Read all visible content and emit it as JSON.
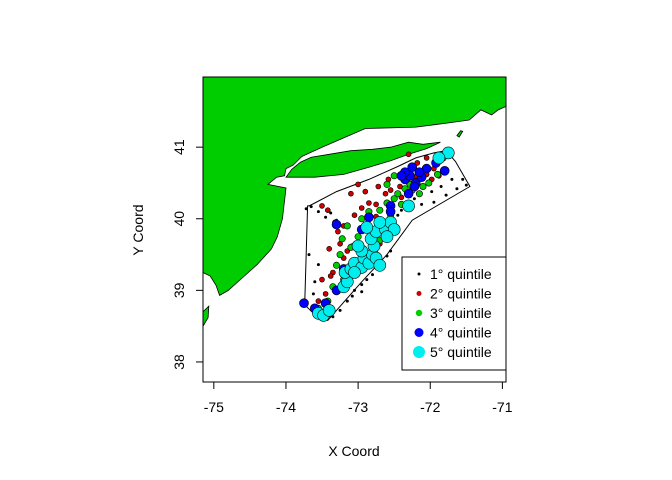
{
  "chart_data": {
    "type": "scatter",
    "xlabel": "X Coord",
    "ylabel": "Y Coord",
    "xlim": [
      -75.15,
      -70.95
    ],
    "ylim": [
      37.72,
      41.98
    ],
    "x_ticks": [
      "-75",
      "-74",
      "-73",
      "-72",
      "-71"
    ],
    "y_ticks": [
      "38",
      "39",
      "40",
      "41"
    ],
    "land_color": "#00CD00",
    "sea_color": "#FFFFFF",
    "survey_boundary": [
      [
        -73.68,
        40.18
      ],
      [
        -73.6,
        40.22
      ],
      [
        -73.3,
        40.38
      ],
      [
        -72.85,
        40.55
      ],
      [
        -72.45,
        40.73
      ],
      [
        -72.2,
        40.85
      ],
      [
        -71.95,
        40.92
      ],
      [
        -71.78,
        40.95
      ],
      [
        -71.65,
        40.8
      ],
      [
        -71.45,
        40.45
      ],
      [
        -72.25,
        39.98
      ],
      [
        -72.6,
        39.5
      ],
      [
        -72.95,
        39.12
      ],
      [
        -73.3,
        38.72
      ],
      [
        -73.42,
        38.58
      ],
      [
        -73.6,
        38.66
      ],
      [
        -73.74,
        38.8
      ],
      [
        -73.7,
        40.18
      ]
    ],
    "land_polygons": [
      {
        "name": "mainland",
        "points": [
          [
            -75.15,
            41.98
          ],
          [
            -70.95,
            41.98
          ],
          [
            -70.95,
            41.57
          ],
          [
            -71.06,
            41.52
          ],
          [
            -71.15,
            41.45
          ],
          [
            -71.3,
            41.52
          ],
          [
            -71.46,
            41.38
          ],
          [
            -71.67,
            41.35
          ],
          [
            -71.9,
            41.32
          ],
          [
            -72.2,
            41.28
          ],
          [
            -72.55,
            41.27
          ],
          [
            -72.9,
            41.26
          ],
          [
            -73.2,
            41.13
          ],
          [
            -73.5,
            41.0
          ],
          [
            -73.78,
            40.87
          ],
          [
            -73.9,
            40.75
          ],
          [
            -74.0,
            40.7
          ],
          [
            -74.02,
            40.6
          ],
          [
            -74.13,
            40.58
          ],
          [
            -74.25,
            40.48
          ],
          [
            -74.0,
            40.43
          ],
          [
            -74.02,
            40.25
          ],
          [
            -74.05,
            40.0
          ],
          [
            -74.12,
            39.75
          ],
          [
            -74.2,
            39.58
          ],
          [
            -74.4,
            39.36
          ],
          [
            -74.6,
            39.18
          ],
          [
            -74.8,
            39.0
          ],
          [
            -74.92,
            38.93
          ],
          [
            -74.97,
            39.07
          ],
          [
            -75.05,
            39.2
          ],
          [
            -75.15,
            39.25
          ]
        ]
      },
      {
        "name": "long-island",
        "points": [
          [
            -74.0,
            40.58
          ],
          [
            -73.6,
            40.58
          ],
          [
            -73.2,
            40.62
          ],
          [
            -72.85,
            40.72
          ],
          [
            -72.55,
            40.81
          ],
          [
            -72.3,
            40.9
          ],
          [
            -72.05,
            40.98
          ],
          [
            -71.86,
            41.07
          ],
          [
            -72.1,
            41.04
          ],
          [
            -72.3,
            41.07
          ],
          [
            -72.55,
            41.0
          ],
          [
            -72.8,
            40.97
          ],
          [
            -73.1,
            40.95
          ],
          [
            -73.4,
            40.9
          ],
          [
            -73.65,
            40.86
          ],
          [
            -73.8,
            40.79
          ],
          [
            -73.92,
            40.69
          ]
        ]
      },
      {
        "name": "block-island",
        "points": [
          [
            -71.6,
            41.14
          ],
          [
            -71.55,
            41.22
          ],
          [
            -71.58,
            41.23
          ],
          [
            -71.63,
            41.16
          ]
        ]
      },
      {
        "name": "delmarva",
        "points": [
          [
            -75.15,
            38.7
          ],
          [
            -75.07,
            38.78
          ],
          [
            -75.08,
            38.62
          ],
          [
            -75.15,
            38.5
          ]
        ]
      }
    ],
    "series": [
      {
        "name": "1° quintile",
        "color": "#000000",
        "size": 1.5,
        "outline": "#000000",
        "points": [
          [
            -73.72,
            40.14
          ],
          [
            -73.65,
            40.17
          ],
          [
            -73.55,
            40.1
          ],
          [
            -73.45,
            40.02
          ],
          [
            -73.38,
            40.08
          ],
          [
            -73.3,
            39.98
          ],
          [
            -72.45,
            40.05
          ],
          [
            -72.4,
            40.12
          ],
          [
            -72.3,
            40.18
          ],
          [
            -72.12,
            40.2
          ],
          [
            -71.95,
            40.23
          ],
          [
            -71.78,
            40.33
          ],
          [
            -71.63,
            40.42
          ],
          [
            -71.5,
            40.47
          ],
          [
            -71.55,
            40.55
          ],
          [
            -71.7,
            40.55
          ],
          [
            -71.85,
            40.65
          ],
          [
            -71.98,
            40.38
          ],
          [
            -71.85,
            40.45
          ],
          [
            -72.22,
            40.28
          ],
          [
            -73.25,
            38.72
          ],
          [
            -73.35,
            38.63
          ],
          [
            -73.42,
            38.62
          ],
          [
            -73.5,
            38.6
          ],
          [
            -73.58,
            38.65
          ],
          [
            -73.05,
            39.0
          ],
          [
            -72.95,
            39.08
          ],
          [
            -72.88,
            39.15
          ],
          [
            -72.8,
            39.22
          ],
          [
            -73.68,
            39.5
          ],
          [
            -73.55,
            39.36
          ],
          [
            -73.6,
            39.12
          ],
          [
            -73.08,
            38.92
          ],
          [
            -73.15,
            38.85
          ],
          [
            -72.95,
            38.98
          ],
          [
            -73.62,
            38.95
          ],
          [
            -72.6,
            39.48
          ],
          [
            -72.55,
            39.55
          ]
        ]
      },
      {
        "name": "2° quintile",
        "color": "#CD0000",
        "size": 2.5,
        "outline": "#000000",
        "points": [
          [
            -73.5,
            40.18
          ],
          [
            -73.42,
            40.12
          ],
          [
            -73.32,
            39.95
          ],
          [
            -73.2,
            39.9
          ],
          [
            -73.05,
            40.05
          ],
          [
            -72.95,
            40.15
          ],
          [
            -72.85,
            40.22
          ],
          [
            -72.75,
            40.2
          ],
          [
            -72.62,
            40.35
          ],
          [
            -72.55,
            40.4
          ],
          [
            -72.42,
            40.45
          ],
          [
            -72.3,
            40.5
          ],
          [
            -72.2,
            40.58
          ],
          [
            -72.05,
            40.62
          ],
          [
            -71.98,
            40.55
          ],
          [
            -71.88,
            40.6
          ],
          [
            -71.92,
            40.82
          ],
          [
            -72.05,
            40.85
          ],
          [
            -72.3,
            40.9
          ],
          [
            -72.18,
            40.78
          ],
          [
            -71.95,
            40.7
          ],
          [
            -72.4,
            40.3
          ],
          [
            -72.72,
            40.45
          ],
          [
            -72.9,
            40.38
          ],
          [
            -73.1,
            40.35
          ],
          [
            -73.0,
            40.48
          ],
          [
            -73.08,
            39.62
          ],
          [
            -73.25,
            39.65
          ],
          [
            -73.28,
            39.82
          ],
          [
            -73.4,
            39.58
          ],
          [
            -73.35,
            39.25
          ],
          [
            -73.5,
            39.15
          ],
          [
            -73.55,
            38.85
          ],
          [
            -73.45,
            38.95
          ],
          [
            -73.2,
            39.45
          ],
          [
            -73.15,
            39.55
          ],
          [
            -72.95,
            39.42
          ],
          [
            -72.7,
            39.65
          ],
          [
            -72.55,
            40.12
          ],
          [
            -72.38,
            40.62
          ],
          [
            -72.58,
            40.55
          ],
          [
            -72.75,
            40.03
          ],
          [
            -73.38,
            39.2
          ]
        ]
      },
      {
        "name": "3° quintile",
        "color": "#00CD00",
        "size": 3.2,
        "outline": "#000000",
        "points": [
          [
            -73.15,
            39.9
          ],
          [
            -72.95,
            40.0
          ],
          [
            -72.85,
            40.1
          ],
          [
            -72.7,
            40.12
          ],
          [
            -72.6,
            40.22
          ],
          [
            -72.5,
            40.28
          ],
          [
            -72.45,
            40.35
          ],
          [
            -72.35,
            40.42
          ],
          [
            -72.28,
            40.48
          ],
          [
            -72.15,
            40.35
          ],
          [
            -72.02,
            40.5
          ],
          [
            -71.9,
            40.62
          ],
          [
            -71.82,
            40.85
          ],
          [
            -72.5,
            40.6
          ],
          [
            -72.6,
            40.48
          ],
          [
            -73.0,
            39.75
          ],
          [
            -73.1,
            39.6
          ],
          [
            -73.25,
            39.5
          ],
          [
            -73.3,
            39.35
          ],
          [
            -73.2,
            39.15
          ],
          [
            -73.35,
            39.05
          ],
          [
            -73.42,
            38.85
          ],
          [
            -73.55,
            38.75
          ],
          [
            -72.8,
            39.55
          ],
          [
            -72.7,
            39.7
          ],
          [
            -72.55,
            40.05
          ],
          [
            -72.4,
            40.2
          ],
          [
            -72.25,
            40.4
          ],
          [
            -73.22,
            39.72
          ],
          [
            -72.2,
            40.52
          ],
          [
            -72.1,
            40.45
          ]
        ]
      },
      {
        "name": "4° quintile",
        "color": "#0000FF",
        "size": 4.5,
        "outline": "#000000",
        "points": [
          [
            -73.75,
            38.82
          ],
          [
            -73.6,
            38.75
          ],
          [
            -73.45,
            38.82
          ],
          [
            -73.3,
            39.0
          ],
          [
            -73.2,
            39.3
          ],
          [
            -72.95,
            39.85
          ],
          [
            -72.85,
            40.02
          ],
          [
            -72.55,
            40.18
          ],
          [
            -72.3,
            40.35
          ],
          [
            -72.2,
            40.5
          ],
          [
            -72.35,
            40.55
          ],
          [
            -72.28,
            40.6
          ],
          [
            -72.22,
            40.45
          ],
          [
            -72.12,
            40.58
          ],
          [
            -72.05,
            40.7
          ],
          [
            -72.35,
            40.65
          ],
          [
            -72.25,
            40.72
          ],
          [
            -72.15,
            40.65
          ],
          [
            -71.92,
            40.78
          ],
          [
            -71.8,
            40.67
          ],
          [
            -73.3,
            39.92
          ],
          [
            -72.55,
            40.1
          ],
          [
            -72.4,
            40.6
          ]
        ]
      },
      {
        "name": "5° quintile",
        "color": "#00EEEE",
        "size": 6,
        "outline": "#000000",
        "points": [
          [
            -73.55,
            38.68
          ],
          [
            -73.48,
            38.65
          ],
          [
            -73.4,
            38.72
          ],
          [
            -73.2,
            39.05
          ],
          [
            -73.15,
            39.12
          ],
          [
            -73.18,
            39.25
          ],
          [
            -73.1,
            39.3
          ],
          [
            -73.05,
            39.38
          ],
          [
            -72.95,
            39.32
          ],
          [
            -72.92,
            39.45
          ],
          [
            -72.85,
            39.38
          ],
          [
            -72.8,
            39.5
          ],
          [
            -72.75,
            39.45
          ],
          [
            -72.7,
            39.35
          ],
          [
            -72.78,
            39.62
          ],
          [
            -72.82,
            39.72
          ],
          [
            -72.75,
            39.82
          ],
          [
            -72.62,
            39.85
          ],
          [
            -72.55,
            39.95
          ],
          [
            -72.5,
            39.85
          ],
          [
            -72.7,
            39.95
          ],
          [
            -72.95,
            39.55
          ],
          [
            -73.0,
            39.62
          ],
          [
            -72.88,
            39.88
          ],
          [
            -72.3,
            40.18
          ],
          [
            -71.75,
            40.92
          ],
          [
            -71.88,
            40.85
          ],
          [
            -73.05,
            39.25
          ],
          [
            -72.6,
            39.75
          ]
        ]
      }
    ],
    "legend": {
      "position": "bottom-right",
      "items": [
        {
          "label": "1° quintile",
          "series": 0
        },
        {
          "label": "2° quintile",
          "series": 1
        },
        {
          "label": "3° quintile",
          "series": 2
        },
        {
          "label": "4° quintile",
          "series": 3
        },
        {
          "label": "5° quintile",
          "series": 4
        }
      ]
    }
  }
}
